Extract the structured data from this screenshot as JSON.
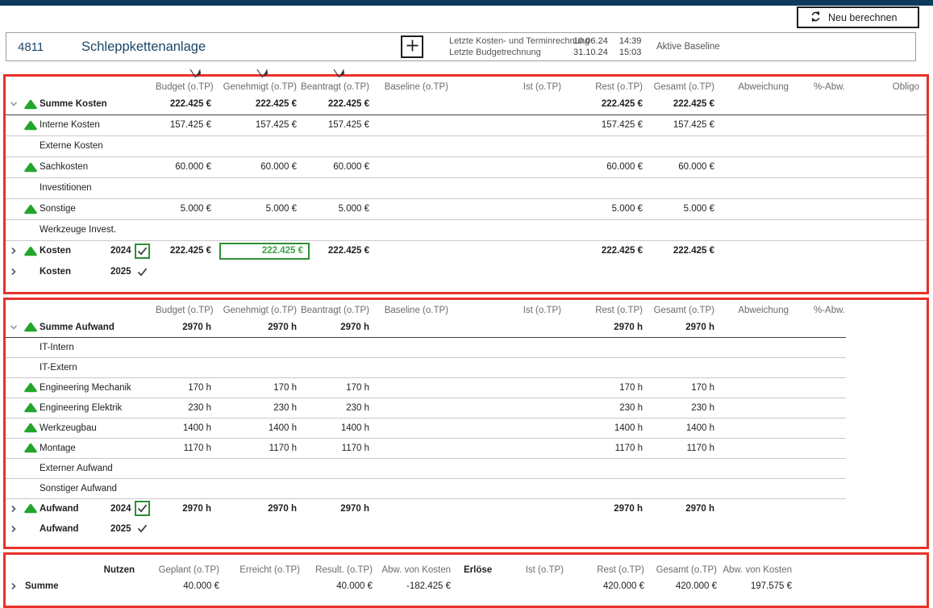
{
  "colors": {
    "topbar": "#0b3a5c",
    "title": "#1b4668",
    "annotation_red": "#e8312a",
    "green_indicator": "#23a52b",
    "green_selection": "#2e8f34",
    "green_selected_text": "#43a047",
    "sep_dark": "#3f3f3f",
    "sep_light": "#c9c9c9",
    "header_text": "#6b6b6b"
  },
  "header": {
    "project_id": "4811",
    "project_name": "Schleppkettenanlage",
    "recalculate_label": "Neu berechnen",
    "info": {
      "row1_label": "Letzte Kosten- und Terminrechnung",
      "row1_date": "10.06.24",
      "row1_time": "14:39",
      "row2_label": "Letzte Budgetrechnung",
      "row2_date": "31.10.24",
      "row2_time": "15:03",
      "baseline_label": "Aktive Baseline"
    }
  },
  "filter_icons": [
    {
      "name": "column-filter-icon-budget"
    },
    {
      "name": "column-filter-icon-genehmigt"
    },
    {
      "name": "column-filter-icon-beantragt"
    }
  ],
  "costs_table": {
    "columns": [
      {
        "key": "budget",
        "label": "Budget (o.TP)"
      },
      {
        "key": "genehmigt",
        "label": "Genehmigt (o.TP)"
      },
      {
        "key": "beantragt",
        "label": "Beantragt (o.TP)"
      },
      {
        "key": "baseline",
        "label": "Baseline (o.TP)"
      },
      {
        "key": "ist",
        "label": "Ist (o.TP)"
      },
      {
        "key": "rest",
        "label": "Rest (o.TP)"
      },
      {
        "key": "gesamt",
        "label": "Gesamt (o.TP)"
      },
      {
        "key": "abweichung",
        "label": "Abweichung"
      },
      {
        "key": "pabw",
        "label": "%-Abw."
      },
      {
        "key": "obligo",
        "label": "Obligo"
      }
    ],
    "rows": [
      {
        "chevron": "down",
        "icon": "triangle-up",
        "label": "Summe Kosten",
        "bold": true,
        "sep": "dark",
        "values": {
          "budget": "222.425 €",
          "genehmigt": "222.425 €",
          "beantragt": "222.425 €",
          "rest": "222.425 €",
          "gesamt": "222.425 €"
        }
      },
      {
        "icon": "triangle-up",
        "label": "Interne Kosten",
        "sep": "light",
        "values": {
          "budget": "157.425 €",
          "genehmigt": "157.425 €",
          "beantragt": "157.425 €",
          "rest": "157.425 €",
          "gesamt": "157.425 €"
        }
      },
      {
        "label": "Externe Kosten",
        "sep": "light",
        "values": {}
      },
      {
        "icon": "triangle-up",
        "label": "Sachkosten",
        "sep": "light",
        "values": {
          "budget": "60.000 €",
          "genehmigt": "60.000 €",
          "beantragt": "60.000 €",
          "rest": "60.000 €",
          "gesamt": "60.000 €"
        }
      },
      {
        "label": "Investitionen",
        "sep": "light",
        "values": {}
      },
      {
        "icon": "triangle-up",
        "label": "Sonstige",
        "sep": "light",
        "values": {
          "budget": "5.000 €",
          "genehmigt": "5.000 €",
          "beantragt": "5.000 €",
          "rest": "5.000 €",
          "gesamt": "5.000 €"
        }
      },
      {
        "label": "Werkzeuge Invest.",
        "sep": "light",
        "values": {}
      },
      {
        "chevron": "right",
        "icon": "triangle-up",
        "label": "Kosten",
        "year": "2024",
        "check": "checkbox",
        "bold": true,
        "sep": "none",
        "selected_cell": "genehmigt",
        "values": {
          "budget": "222.425 €",
          "genehmigt": "222.425 €",
          "beantragt": "222.425 €",
          "rest": "222.425 €",
          "gesamt": "222.425 €"
        }
      },
      {
        "chevron": "right",
        "label": "Kosten",
        "year": "2025",
        "check": "plain",
        "bold": true,
        "sep": "none",
        "values": {}
      }
    ]
  },
  "efforts_table": {
    "columns": [
      {
        "key": "budget",
        "label": "Budget (o.TP)"
      },
      {
        "key": "genehmigt",
        "label": "Genehmigt (o.TP)"
      },
      {
        "key": "beantragt",
        "label": "Beantragt (o.TP)"
      },
      {
        "key": "baseline",
        "label": "Baseline (o.TP)"
      },
      {
        "key": "ist",
        "label": "Ist (o.TP)"
      },
      {
        "key": "rest",
        "label": "Rest (o.TP)"
      },
      {
        "key": "gesamt",
        "label": "Gesamt (o.TP)"
      },
      {
        "key": "abweichung",
        "label": "Abweichung"
      },
      {
        "key": "pabw",
        "label": "%-Abw."
      }
    ],
    "rows": [
      {
        "chevron": "down",
        "icon": "triangle-up",
        "label": "Summe Aufwand",
        "bold": true,
        "sep": "dark",
        "values": {
          "budget": "2970 h",
          "genehmigt": "2970 h",
          "beantragt": "2970 h",
          "rest": "2970 h",
          "gesamt": "2970 h"
        }
      },
      {
        "label": "IT-Intern",
        "sep": "light",
        "values": {}
      },
      {
        "label": "IT-Extern",
        "sep": "light",
        "values": {}
      },
      {
        "icon": "triangle-up",
        "label": "Engineering Mechanik",
        "sep": "light",
        "values": {
          "budget": "170 h",
          "genehmigt": "170 h",
          "beantragt": "170 h",
          "rest": "170 h",
          "gesamt": "170 h"
        }
      },
      {
        "icon": "triangle-up",
        "label": "Engineering Elektrik",
        "sep": "light",
        "values": {
          "budget": "230 h",
          "genehmigt": "230 h",
          "beantragt": "230 h",
          "rest": "230 h",
          "gesamt": "230 h"
        }
      },
      {
        "icon": "triangle-up",
        "label": "Werkzeugbau",
        "sep": "light",
        "values": {
          "budget": "1400 h",
          "genehmigt": "1400 h",
          "beantragt": "1400 h",
          "rest": "1400 h",
          "gesamt": "1400 h"
        }
      },
      {
        "icon": "triangle-up",
        "label": "Montage",
        "sep": "light",
        "values": {
          "budget": "1170 h",
          "genehmigt": "1170 h",
          "beantragt": "1170 h",
          "rest": "1170 h",
          "gesamt": "1170 h"
        }
      },
      {
        "label": "Externer Aufwand",
        "sep": "light",
        "values": {}
      },
      {
        "label": "Sonstiger Aufwand",
        "sep": "light",
        "values": {}
      },
      {
        "chevron": "right",
        "icon": "triangle-up",
        "label": "Aufwand",
        "year": "2024",
        "check": "checkbox",
        "bold": true,
        "sep": "none",
        "values": {
          "budget": "2970 h",
          "genehmigt": "2970 h",
          "beantragt": "2970 h",
          "rest": "2970 h",
          "gesamt": "2970 h"
        }
      },
      {
        "chevron": "right",
        "label": "Aufwand",
        "year": "2025",
        "check": "plain",
        "bold": true,
        "sep": "none",
        "values": {}
      }
    ]
  },
  "benefits_table": {
    "columns": [
      {
        "key": "nutzen",
        "label": "Nutzen",
        "strong": true
      },
      {
        "key": "geplant",
        "label": "Geplant (o.TP)"
      },
      {
        "key": "erreicht",
        "label": "Erreicht (o.TP)"
      },
      {
        "key": "result",
        "label": "Result. (o.TP)"
      },
      {
        "key": "abw_kosten_1",
        "label": "Abw. von Kosten"
      },
      {
        "key": "erloese",
        "label": "Erlöse",
        "strong": true,
        "left": true
      },
      {
        "key": "ist",
        "label": "Ist (o.TP)"
      },
      {
        "key": "rest",
        "label": "Rest (o.TP)"
      },
      {
        "key": "gesamt",
        "label": "Gesamt (o.TP)"
      },
      {
        "key": "abw_kosten_2",
        "label": "Abw. von Kosten"
      }
    ],
    "rows": [
      {
        "chevron": "right",
        "label": "Summe",
        "bold": true,
        "sep": "none",
        "values": {
          "geplant": "40.000 €",
          "result": "40.000 €",
          "abw_kosten_1": "-182.425 €",
          "rest": "420.000 €",
          "gesamt": "420.000 €",
          "abw_kosten_2": "197.575 €"
        }
      }
    ]
  }
}
